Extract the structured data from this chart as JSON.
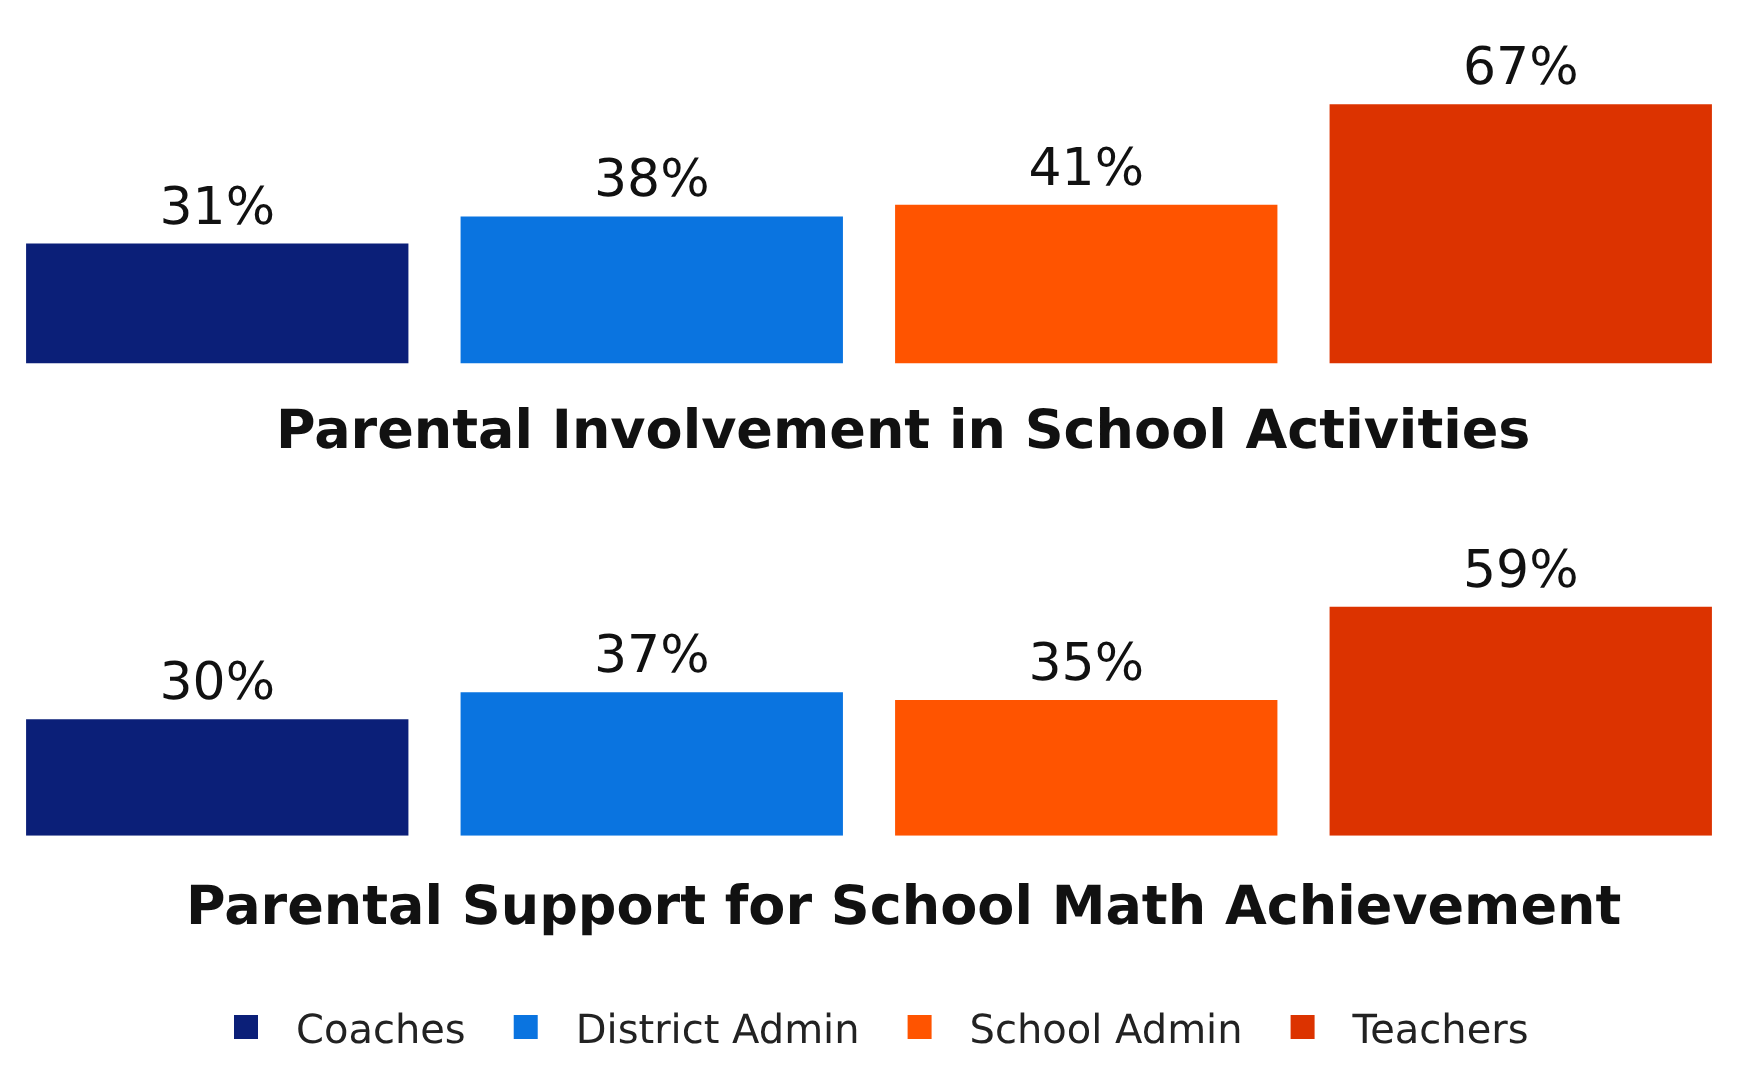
{
  "chart_data": [
    {
      "type": "bar",
      "title": "Parental Involvement in School Activities",
      "categories": [
        null
      ],
      "tick_labels": false,
      "legend": "bottom",
      "series": [
        {
          "name": "Coaches",
          "color": "#0b1f78",
          "values": [
            31
          ],
          "value_labels": [
            "31%"
          ]
        },
        {
          "name": "District Admin",
          "color": "#0a74e0",
          "values": [
            38
          ],
          "value_labels": [
            "38%"
          ]
        },
        {
          "name": "School Admin",
          "color": "#ff5400",
          "values": [
            41
          ],
          "value_labels": [
            "41%"
          ]
        },
        {
          "name": "Teachers",
          "color": "#dc3300",
          "values": [
            67
          ],
          "value_labels": [
            "67%"
          ]
        }
      ]
    },
    {
      "type": "bar",
      "title": "Parental Support for School Math Achievement",
      "categories": [
        null
      ],
      "tick_labels": false,
      "legend": "bottom",
      "series": [
        {
          "name": "Coaches",
          "color": "#0b1f78",
          "values": [
            30
          ],
          "value_labels": [
            "30%"
          ]
        },
        {
          "name": "District Admin",
          "color": "#0a74e0",
          "values": [
            37
          ],
          "value_labels": [
            "37%"
          ]
        },
        {
          "name": "School Admin",
          "color": "#ff5400",
          "values": [
            35
          ],
          "value_labels": [
            "35%"
          ]
        },
        {
          "name": "Teachers",
          "color": "#dc3300",
          "values": [
            59
          ],
          "value_labels": [
            "59%"
          ]
        }
      ]
    }
  ]
}
